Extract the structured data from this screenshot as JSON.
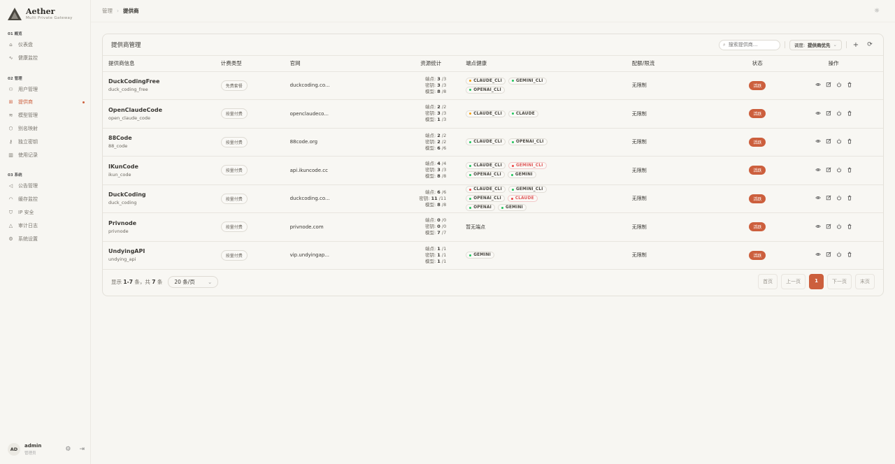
{
  "app": {
    "title": "Aether",
    "subtitle": "Multi Private Gateway"
  },
  "sidebar": {
    "sections": [
      {
        "label": "01  概览",
        "items": [
          {
            "label": "仪表盘",
            "icon": "home-icon"
          },
          {
            "label": "健康监控",
            "icon": "activity-icon"
          }
        ]
      },
      {
        "label": "02  管理",
        "items": [
          {
            "label": "用户管理",
            "icon": "users-icon"
          },
          {
            "label": "提供商",
            "icon": "provider-icon",
            "active": true
          },
          {
            "label": "模型管理",
            "icon": "layers-icon"
          },
          {
            "label": "别名映射",
            "icon": "tag-icon"
          },
          {
            "label": "独立密钥",
            "icon": "key-icon"
          },
          {
            "label": "使用记录",
            "icon": "bar-chart-icon"
          }
        ]
      },
      {
        "label": "03  系统",
        "items": [
          {
            "label": "公告管理",
            "icon": "megaphone-icon"
          },
          {
            "label": "缓存监控",
            "icon": "gauge-icon"
          },
          {
            "label": "IP 安全",
            "icon": "shield-icon"
          },
          {
            "label": "审计日志",
            "icon": "alert-icon"
          },
          {
            "label": "系统设置",
            "icon": "gear-icon"
          }
        ]
      }
    ],
    "user": {
      "initials": "AD",
      "name": "admin",
      "role": "管理员"
    }
  },
  "breadcrumb": [
    "管理",
    "提供商"
  ],
  "card": {
    "title": "提供商管理",
    "search_placeholder": "搜索提供商...",
    "schedule_label": "调度:",
    "schedule_value": "提供商优先"
  },
  "columns": [
    "提供商信息",
    "计费类型",
    "官网",
    "资源统计",
    "端点健康",
    "配额/限流",
    "状态",
    "操作"
  ],
  "stat_labels": {
    "endpoints": "端点:",
    "keys": "密钥:",
    "models": "模型:"
  },
  "colors": {
    "accent": "#cc5f3d",
    "ok": "#22c55e",
    "warn": "#f59e0b",
    "bad": "#ef4444"
  },
  "providers": [
    {
      "name": "DuckCodingFree",
      "id": "duck_coding_free",
      "billing": "免费套餐",
      "site": "duckcoding.co...",
      "endpoints": [
        "3",
        "/3"
      ],
      "keys": [
        "3",
        "/3"
      ],
      "models": [
        "8",
        "/8"
      ],
      "health": [
        {
          "n": "CLAUDE_CLI",
          "s": "warn"
        },
        {
          "n": "GEMINI_CLI",
          "s": "ok"
        },
        {
          "n": "OPENAI_CLI",
          "s": "ok"
        }
      ],
      "quota": "无限制",
      "status": "活跃"
    },
    {
      "name": "OpenClaudeCode",
      "id": "open_claude_code",
      "billing": "按量付费",
      "site": "openclaudeco...",
      "endpoints": [
        "2",
        "/2"
      ],
      "keys": [
        "3",
        "/3"
      ],
      "models": [
        "1",
        "/3"
      ],
      "health": [
        {
          "n": "CLAUDE_CLI",
          "s": "warn"
        },
        {
          "n": "CLAUDE",
          "s": "ok"
        }
      ],
      "quota": "无限制",
      "status": "活跃"
    },
    {
      "name": "88Code",
      "id": "88_code",
      "billing": "按量付费",
      "site": "88code.org",
      "endpoints": [
        "2",
        "/2"
      ],
      "keys": [
        "2",
        "/2"
      ],
      "models": [
        "6",
        "/6"
      ],
      "health": [
        {
          "n": "CLAUDE_CLI",
          "s": "ok"
        },
        {
          "n": "OPENAI_CLI",
          "s": "ok"
        }
      ],
      "quota": "无限制",
      "status": "活跃"
    },
    {
      "name": "IKunCode",
      "id": "ikun_code",
      "billing": "按量付费",
      "site": "api.ikuncode.cc",
      "endpoints": [
        "4",
        "/4"
      ],
      "keys": [
        "3",
        "/3"
      ],
      "models": [
        "8",
        "/8"
      ],
      "health": [
        {
          "n": "CLAUDE_CLI",
          "s": "ok"
        },
        {
          "n": "GEMINI_CLI",
          "s": "bad"
        },
        {
          "n": "OPENAI_CLI",
          "s": "ok"
        },
        {
          "n": "GEMINI",
          "s": "ok"
        }
      ],
      "quota": "无限制",
      "status": "活跃"
    },
    {
      "name": "DuckCoding",
      "id": "duck_coding",
      "billing": "按量付费",
      "site": "duckcoding.co...",
      "endpoints": [
        "6",
        "/6"
      ],
      "keys": [
        "11",
        "/11"
      ],
      "models": [
        "8",
        "/8"
      ],
      "health": [
        {
          "n": "CLAUDE_CLI",
          "s": "baddot"
        },
        {
          "n": "GEMINI_CLI",
          "s": "ok"
        },
        {
          "n": "OPENAI_CLI",
          "s": "ok"
        },
        {
          "n": "CLAUDE",
          "s": "bad"
        },
        {
          "n": "OPENAI",
          "s": "ok"
        },
        {
          "n": "GEMINI",
          "s": "ok"
        }
      ],
      "quota": "无限制",
      "status": "活跃"
    },
    {
      "name": "Privnode",
      "id": "privnode",
      "billing": "按量付费",
      "site": "privnode.com",
      "endpoints": [
        "0",
        "/0"
      ],
      "keys": [
        "0",
        "/0"
      ],
      "models": [
        "7",
        "/7"
      ],
      "health": [],
      "health_empty": "暂无端点",
      "quota": "无限制",
      "status": "活跃"
    },
    {
      "name": "UndyingAPI",
      "id": "undying_api",
      "billing": "按量付费",
      "site": "vip.undyingap...",
      "endpoints": [
        "1",
        "/1"
      ],
      "keys": [
        "1",
        "/1"
      ],
      "models": [
        "1",
        "/1"
      ],
      "health": [
        {
          "n": "GEMINI",
          "s": "ok"
        }
      ],
      "quota": "无限制",
      "status": "活跃"
    }
  ],
  "footer": {
    "prefix": "显示",
    "range": "1-7",
    "mid": "条，共",
    "total": "7",
    "suffix": "条",
    "page_size": "20 条/页"
  },
  "pagination": {
    "first": "首页",
    "prev": "上一页",
    "current": "1",
    "next": "下一页",
    "last": "末页"
  }
}
